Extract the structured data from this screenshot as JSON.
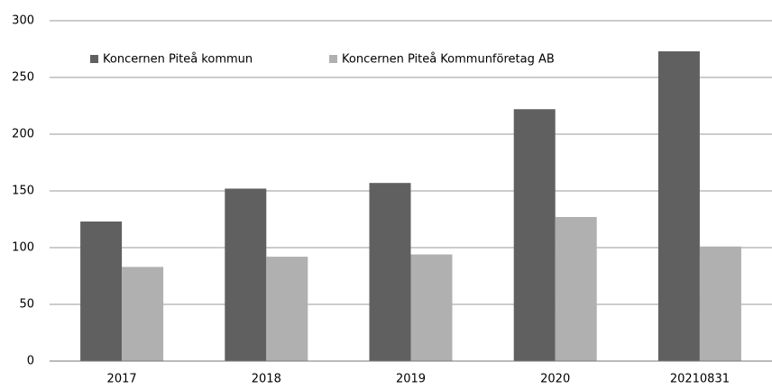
{
  "chart_data": {
    "type": "bar",
    "categories": [
      "2017",
      "2018",
      "2019",
      "2020",
      "20210831"
    ],
    "series": [
      {
        "name": "Koncernen Piteå kommun",
        "color": "#606060",
        "values": [
          123,
          152,
          157,
          222,
          273
        ]
      },
      {
        "name": "Koncernen Piteå Kommunföretag AB",
        "color": "#b0b0b0",
        "values": [
          83,
          92,
          94,
          127,
          101
        ]
      }
    ],
    "ylim": [
      0,
      300
    ],
    "yticks": [
      0,
      50,
      100,
      150,
      200,
      250,
      300
    ],
    "grid": true,
    "legend": "top-left"
  }
}
